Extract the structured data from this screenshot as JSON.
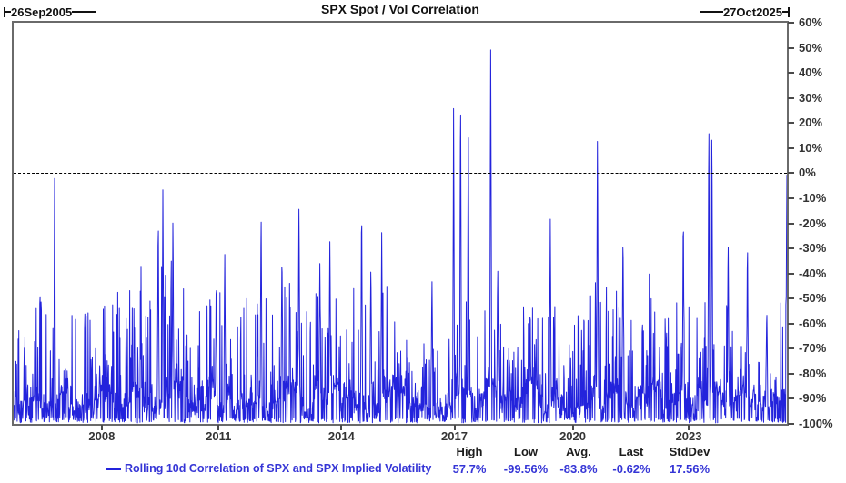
{
  "header": {
    "title": "SPX Spot / Vol Correlation",
    "start_date": "26Sep2005",
    "end_date": "27Oct2025"
  },
  "legend": {
    "label": "Rolling 10d Correlation of SPX and SPX Implied Volatility"
  },
  "stats": {
    "columns": [
      {
        "label": "High",
        "value": "57.7%"
      },
      {
        "label": "Low",
        "value": "-99.56%"
      },
      {
        "label": "Avg.",
        "value": "-83.8%"
      },
      {
        "label": "Last",
        "value": "-0.62%"
      },
      {
        "label": "StdDev",
        "value": "17.56%"
      }
    ]
  },
  "colors": {
    "line": "#2323DC",
    "legend_text": "#3535D6",
    "value_text": "#3535D6",
    "axis_text": "#333333",
    "border": "#6A6A6A",
    "zero_line": "#000000"
  },
  "chart_data": {
    "type": "line",
    "title": "SPX Spot / Vol Correlation",
    "series_name": "Rolling 10d Correlation of SPX and SPX Implied Volatility",
    "x_range": [
      "26Sep2005",
      "27Oct2025"
    ],
    "ylim": [
      -100,
      60
    ],
    "y_tick_step": 10,
    "y_ticks": [
      60,
      50,
      40,
      30,
      20,
      10,
      0,
      -10,
      -20,
      -30,
      -40,
      -50,
      -60,
      -70,
      -80,
      -90,
      -100
    ],
    "x_ticks": [
      {
        "label": "2008",
        "t": 0.114
      },
      {
        "label": "2011",
        "t": 0.265
      },
      {
        "label": "2014",
        "t": 0.424
      },
      {
        "label": "2017",
        "t": 0.57
      },
      {
        "label": "2020",
        "t": 0.723
      },
      {
        "label": "2023",
        "t": 0.873
      }
    ],
    "zero_reference": 0,
    "grid": "zero-line-only",
    "legend_position": "bottom",
    "stats": {
      "high": 57.7,
      "low": -99.56,
      "avg": -83.8,
      "last": -0.62,
      "stddev": 17.56
    },
    "pattern": {
      "seed": 1337,
      "points": 2400,
      "walk": 5,
      "base_min": -95.5,
      "base_max": -83.5,
      "jitter": 7,
      "minor_prob": 0.32,
      "minor_pow": 1.7,
      "minor_max": 40,
      "mid_prob": 0.025,
      "mid_extra": 14,
      "floor_prob": 0.2,
      "ceiling": -6,
      "floor": -99.6,
      "spike_w": 0.0012,
      "spike_base": -88
    },
    "amp_zones": [
      {
        "from": 0.12,
        "to": 0.22,
        "amp": 1.15
      },
      {
        "from": 0.495,
        "to": 0.555,
        "amp": 0.55
      },
      {
        "from": 0.63,
        "to": 0.68,
        "amp": 0.8
      },
      {
        "from": 0.93,
        "to": 0.99,
        "amp": 0.45
      }
    ],
    "major_spikes": [
      {
        "t": 0.053,
        "v": 3.5,
        "w": 0.001
      },
      {
        "t": 0.187,
        "v": -13
      },
      {
        "t": 0.193,
        "v": -6.5
      },
      {
        "t": 0.206,
        "v": -15
      },
      {
        "t": 0.262,
        "v": -39
      },
      {
        "t": 0.273,
        "v": -31
      },
      {
        "t": 0.32,
        "v": -11
      },
      {
        "t": 0.347,
        "v": -28
      },
      {
        "t": 0.369,
        "v": -8
      },
      {
        "t": 0.396,
        "v": -36
      },
      {
        "t": 0.409,
        "v": -23
      },
      {
        "t": 0.45,
        "v": -8.5
      },
      {
        "t": 0.462,
        "v": -33
      },
      {
        "t": 0.476,
        "v": -22
      },
      {
        "t": 0.541,
        "v": -41
      },
      {
        "t": 0.569,
        "v": 27,
        "w": 0.0012
      },
      {
        "t": 0.578,
        "v": 40,
        "w": 0.0012
      },
      {
        "t": 0.588,
        "v": 30,
        "w": 0.0012
      },
      {
        "t": 0.617,
        "v": 57.7,
        "w": 0.0013
      },
      {
        "t": 0.626,
        "v": -35
      },
      {
        "t": 0.694,
        "v": -16
      },
      {
        "t": 0.755,
        "v": 22,
        "w": 0.0012
      },
      {
        "t": 0.788,
        "v": -20
      },
      {
        "t": 0.866,
        "v": -11
      },
      {
        "t": 0.899,
        "v": 29,
        "w": 0.0011
      },
      {
        "t": 0.903,
        "v": 26,
        "w": 0.0011
      },
      {
        "t": 0.924,
        "v": -22
      },
      {
        "t": 0.949,
        "v": -24
      },
      {
        "t": 0.974,
        "v": -52
      },
      {
        "t": 1.0,
        "v": -0.62,
        "w": 0.0015
      }
    ]
  }
}
